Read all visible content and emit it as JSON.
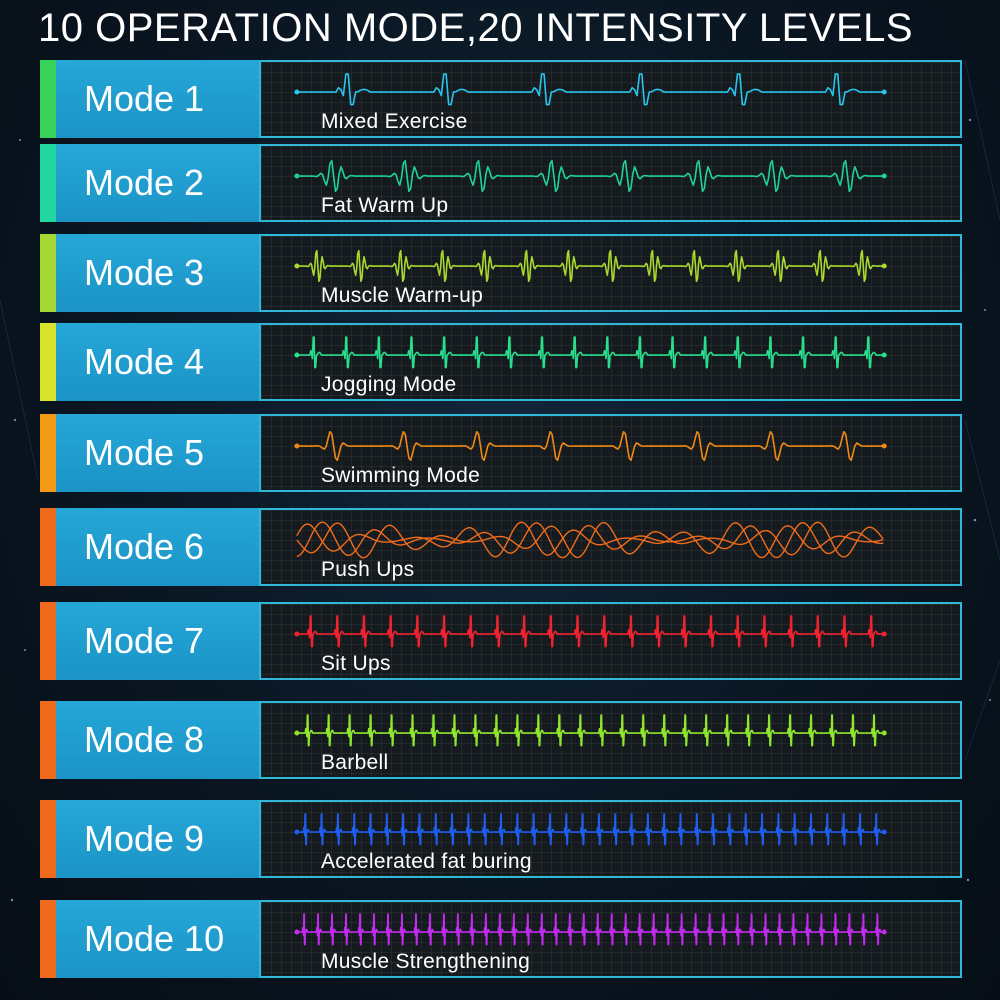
{
  "headline": "10 OPERATION MODE,20 INTENSITY LEVELS",
  "modes": [
    {
      "label": "Mode 1",
      "description": "Mixed Exercise",
      "color": "#27c6ec",
      "accent": "#38d15a"
    },
    {
      "label": "Mode 2",
      "description": "Fat Warm Up",
      "color": "#1fd39a",
      "accent": "#22d7a0"
    },
    {
      "label": "Mode 3",
      "description": "Muscle Warm-up",
      "color": "#a9d92d",
      "accent": "#a6d936"
    },
    {
      "label": "Mode 4",
      "description": "Jogging Mode",
      "color": "#27df8c",
      "accent": "#d9e32b"
    },
    {
      "label": "Mode 5",
      "description": "Swimming Mode",
      "color": "#f08a14",
      "accent": "#f29a15"
    },
    {
      "label": "Mode 6",
      "description": "Push Ups",
      "color": "#f06c1a",
      "accent": "#ef6a1c"
    },
    {
      "label": "Mode 7",
      "description": "Sit Ups",
      "color": "#f2222e",
      "accent": "#ef6a1c"
    },
    {
      "label": "Mode 8",
      "description": "Barbell",
      "color": "#8fe62c",
      "accent": "#ef6a1c"
    },
    {
      "label": "Mode 9",
      "description": "Accelerated fat buring",
      "color": "#1f5ef2",
      "accent": "#ef6a1c"
    },
    {
      "label": "Mode 10",
      "description": "Muscle Strengthening",
      "color": "#c32bf0",
      "accent": "#ef6a1c"
    }
  ]
}
